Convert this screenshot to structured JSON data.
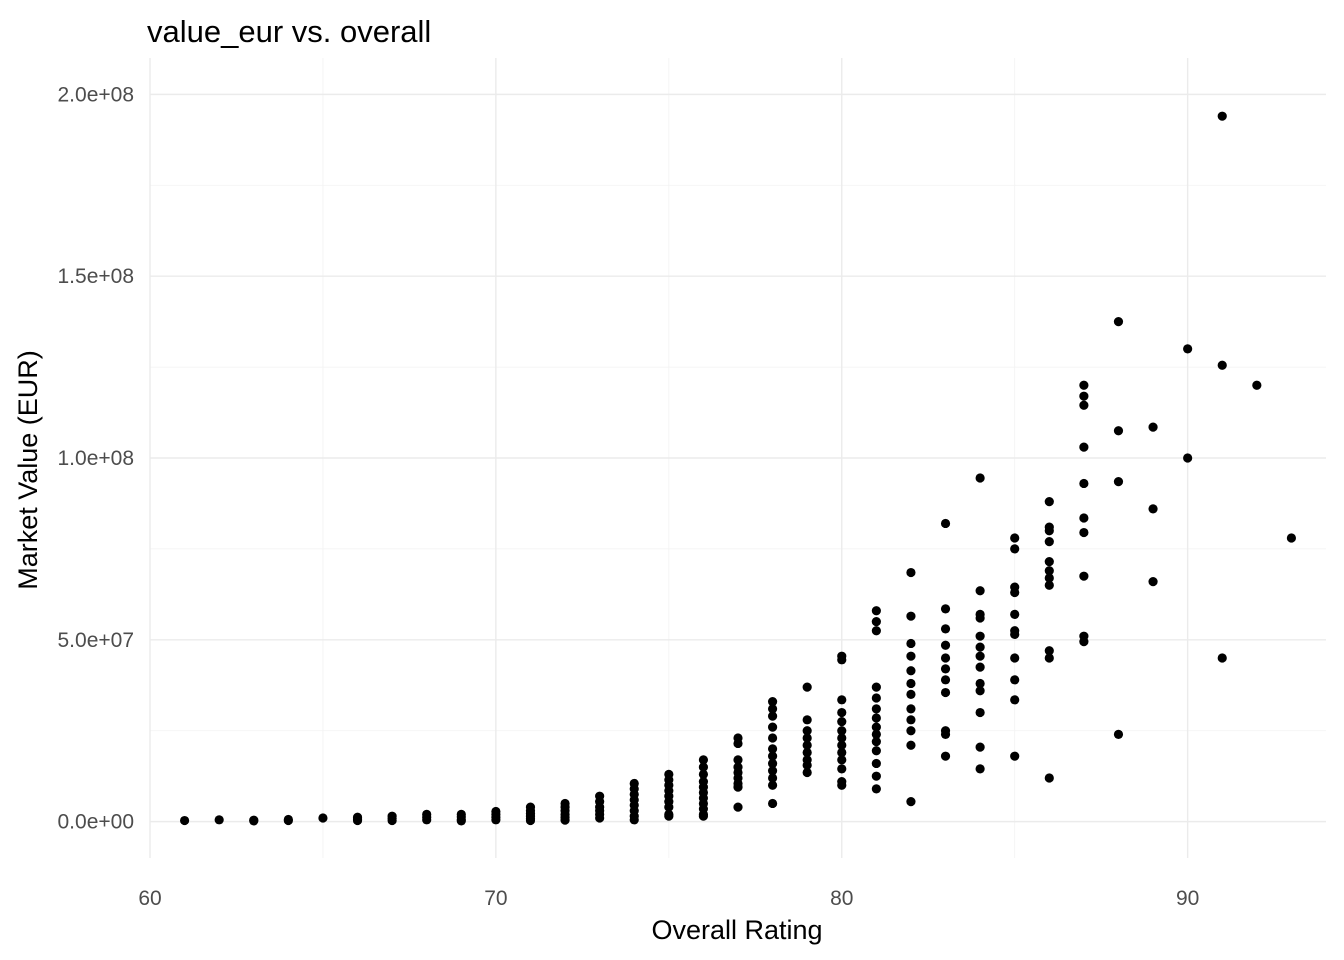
{
  "chart_data": {
    "type": "scatter",
    "title": "value_eur vs. overall",
    "xlabel": "Overall Rating",
    "ylabel": "Market Value (EUR)",
    "xlim": [
      60,
      94
    ],
    "ylim": [
      0,
      200000000
    ],
    "x_ticks": [
      60,
      70,
      80,
      90
    ],
    "x_tick_labels": [
      "60",
      "70",
      "80",
      "90"
    ],
    "y_ticks": [
      0,
      50000000,
      100000000,
      150000000,
      200000000
    ],
    "y_tick_labels": [
      "0.0e+00",
      "5.0e+07",
      "1.0e+08",
      "1.5e+08",
      "2.0e+08"
    ],
    "grid": true,
    "point_color": "#000000",
    "points": [
      [
        61,
        300000
      ],
      [
        62,
        500000
      ],
      [
        63,
        400000
      ],
      [
        63,
        200000
      ],
      [
        64,
        600000
      ],
      [
        64,
        300000
      ],
      [
        65,
        1000000
      ],
      [
        66,
        1200000
      ],
      [
        66,
        700000
      ],
      [
        66,
        300000
      ],
      [
        67,
        1500000
      ],
      [
        67,
        900000
      ],
      [
        67,
        300000
      ],
      [
        68,
        2000000
      ],
      [
        68,
        1200000
      ],
      [
        68,
        500000
      ],
      [
        69,
        2000000
      ],
      [
        69,
        1300000
      ],
      [
        69,
        600000
      ],
      [
        69,
        200000
      ],
      [
        70,
        2800000
      ],
      [
        70,
        2000000
      ],
      [
        70,
        1200000
      ],
      [
        70,
        500000
      ],
      [
        71,
        4000000
      ],
      [
        71,
        3000000
      ],
      [
        71,
        2200000
      ],
      [
        71,
        1500000
      ],
      [
        71,
        800000
      ],
      [
        71,
        300000
      ],
      [
        72,
        5000000
      ],
      [
        72,
        4000000
      ],
      [
        72,
        3000000
      ],
      [
        72,
        2000000
      ],
      [
        72,
        1200000
      ],
      [
        72,
        400000
      ],
      [
        73,
        7000000
      ],
      [
        73,
        5500000
      ],
      [
        73,
        4000000
      ],
      [
        73,
        3000000
      ],
      [
        73,
        2000000
      ],
      [
        73,
        1000000
      ],
      [
        74,
        10500000
      ],
      [
        74,
        9000000
      ],
      [
        74,
        7500000
      ],
      [
        74,
        6000000
      ],
      [
        74,
        4500000
      ],
      [
        74,
        3000000
      ],
      [
        74,
        1500000
      ],
      [
        74,
        500000
      ],
      [
        75,
        13000000
      ],
      [
        75,
        11500000
      ],
      [
        75,
        10000000
      ],
      [
        75,
        8500000
      ],
      [
        75,
        7000000
      ],
      [
        75,
        5500000
      ],
      [
        75,
        4000000
      ],
      [
        75,
        2000000
      ],
      [
        75,
        1500000
      ],
      [
        76,
        17000000
      ],
      [
        76,
        15000000
      ],
      [
        76,
        13000000
      ],
      [
        76,
        11000000
      ],
      [
        76,
        9500000
      ],
      [
        76,
        8000000
      ],
      [
        76,
        6500000
      ],
      [
        76,
        5000000
      ],
      [
        76,
        3500000
      ],
      [
        76,
        2000000
      ],
      [
        76,
        1500000
      ],
      [
        77,
        23000000
      ],
      [
        77,
        21500000
      ],
      [
        77,
        17000000
      ],
      [
        77,
        15000000
      ],
      [
        77,
        13500000
      ],
      [
        77,
        12000000
      ],
      [
        77,
        10500000
      ],
      [
        77,
        9500000
      ],
      [
        77,
        4000000
      ],
      [
        78,
        33000000
      ],
      [
        78,
        31000000
      ],
      [
        78,
        29000000
      ],
      [
        78,
        26000000
      ],
      [
        78,
        23000000
      ],
      [
        78,
        20000000
      ],
      [
        78,
        18000000
      ],
      [
        78,
        16000000
      ],
      [
        78,
        14000000
      ],
      [
        78,
        12000000
      ],
      [
        78,
        10000000
      ],
      [
        78,
        5000000
      ],
      [
        79,
        37000000
      ],
      [
        79,
        28000000
      ],
      [
        79,
        25000000
      ],
      [
        79,
        23000000
      ],
      [
        79,
        21000000
      ],
      [
        79,
        19000000
      ],
      [
        79,
        17000000
      ],
      [
        79,
        15500000
      ],
      [
        79,
        13500000
      ],
      [
        80,
        45500000
      ],
      [
        80,
        44500000
      ],
      [
        80,
        33500000
      ],
      [
        80,
        30000000
      ],
      [
        80,
        27500000
      ],
      [
        80,
        25000000
      ],
      [
        80,
        23000000
      ],
      [
        80,
        21000000
      ],
      [
        80,
        19000000
      ],
      [
        80,
        17000000
      ],
      [
        80,
        14500000
      ],
      [
        80,
        11000000
      ],
      [
        80,
        10000000
      ],
      [
        81,
        58000000
      ],
      [
        81,
        55000000
      ],
      [
        81,
        52500000
      ],
      [
        81,
        37000000
      ],
      [
        81,
        34000000
      ],
      [
        81,
        31000000
      ],
      [
        81,
        28500000
      ],
      [
        81,
        26000000
      ],
      [
        81,
        24000000
      ],
      [
        81,
        22000000
      ],
      [
        81,
        19500000
      ],
      [
        81,
        16000000
      ],
      [
        81,
        12500000
      ],
      [
        81,
        9000000
      ],
      [
        82,
        68500000
      ],
      [
        82,
        56500000
      ],
      [
        82,
        49000000
      ],
      [
        82,
        45500000
      ],
      [
        82,
        41500000
      ],
      [
        82,
        38000000
      ],
      [
        82,
        35000000
      ],
      [
        82,
        31000000
      ],
      [
        82,
        28000000
      ],
      [
        82,
        25000000
      ],
      [
        82,
        21000000
      ],
      [
        82,
        5500000
      ],
      [
        83,
        82000000
      ],
      [
        83,
        58500000
      ],
      [
        83,
        53000000
      ],
      [
        83,
        48500000
      ],
      [
        83,
        45000000
      ],
      [
        83,
        42000000
      ],
      [
        83,
        39000000
      ],
      [
        83,
        35500000
      ],
      [
        83,
        25000000
      ],
      [
        83,
        24000000
      ],
      [
        83,
        18000000
      ],
      [
        84,
        94500000
      ],
      [
        84,
        63500000
      ],
      [
        84,
        57000000
      ],
      [
        84,
        56000000
      ],
      [
        84,
        51000000
      ],
      [
        84,
        48000000
      ],
      [
        84,
        45500000
      ],
      [
        84,
        42500000
      ],
      [
        84,
        38000000
      ],
      [
        84,
        36000000
      ],
      [
        84,
        30000000
      ],
      [
        84,
        20500000
      ],
      [
        84,
        14500000
      ],
      [
        85,
        78000000
      ],
      [
        85,
        75000000
      ],
      [
        85,
        64500000
      ],
      [
        85,
        63000000
      ],
      [
        85,
        57000000
      ],
      [
        85,
        52500000
      ],
      [
        85,
        51500000
      ],
      [
        85,
        45000000
      ],
      [
        85,
        39000000
      ],
      [
        85,
        33500000
      ],
      [
        85,
        18000000
      ],
      [
        86,
        88000000
      ],
      [
        86,
        81000000
      ],
      [
        86,
        80000000
      ],
      [
        86,
        77000000
      ],
      [
        86,
        71500000
      ],
      [
        86,
        69000000
      ],
      [
        86,
        67000000
      ],
      [
        86,
        65000000
      ],
      [
        86,
        47000000
      ],
      [
        86,
        45000000
      ],
      [
        86,
        12000000
      ],
      [
        87,
        120000000
      ],
      [
        87,
        117000000
      ],
      [
        87,
        114500000
      ],
      [
        87,
        103000000
      ],
      [
        87,
        93000000
      ],
      [
        87,
        83500000
      ],
      [
        87,
        79500000
      ],
      [
        87,
        67500000
      ],
      [
        87,
        51000000
      ],
      [
        87,
        49500000
      ],
      [
        88,
        137500000
      ],
      [
        88,
        107500000
      ],
      [
        88,
        93500000
      ],
      [
        88,
        24000000
      ],
      [
        89,
        108500000
      ],
      [
        89,
        86000000
      ],
      [
        89,
        66000000
      ],
      [
        90,
        130000000
      ],
      [
        90,
        100000000
      ],
      [
        91,
        194000000
      ],
      [
        91,
        125500000
      ],
      [
        91,
        45000000
      ],
      [
        92,
        120000000
      ],
      [
        93,
        78000000
      ]
    ]
  }
}
